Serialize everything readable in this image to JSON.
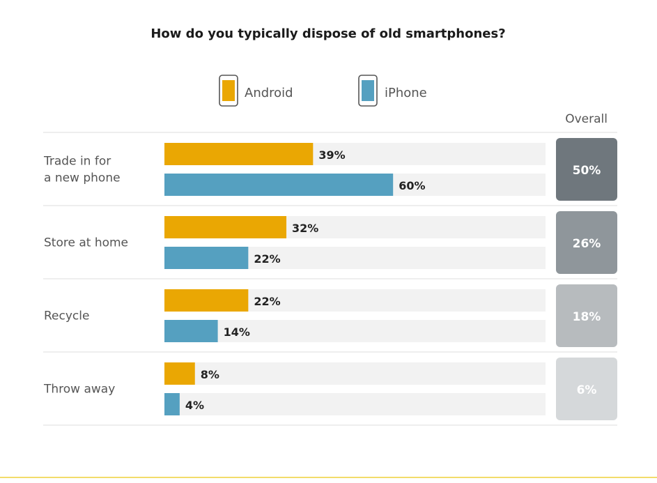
{
  "chart_data": {
    "type": "bar",
    "title": "How do you typically dispose of old smartphones?",
    "legend": [
      "Android",
      "iPhone"
    ],
    "categories": [
      "Trade in for\na new phone",
      "Store at home",
      "Recycle",
      "Throw away"
    ],
    "series": [
      {
        "name": "Android",
        "values": [
          39,
          32,
          22,
          8
        ],
        "labels": [
          "39%",
          "32%",
          "22%",
          "8%"
        ]
      },
      {
        "name": "iPhone",
        "values": [
          60,
          22,
          14,
          4
        ],
        "labels": [
          "60%",
          "22%",
          "14%",
          "4%"
        ]
      }
    ],
    "overall": {
      "header": "Overall",
      "values": [
        50,
        26,
        18,
        6
      ],
      "labels": [
        "50%",
        "26%",
        "18%",
        "6%"
      ]
    },
    "xlim": [
      0,
      100
    ],
    "colors": {
      "Android": "#eaa703",
      "iPhone": "#55a0c0",
      "track": "#f2f2f2",
      "overall": [
        "#6f777d",
        "#8f969b",
        "#b7bbbe",
        "#d5d8da"
      ],
      "divider": "#dddddd"
    }
  }
}
